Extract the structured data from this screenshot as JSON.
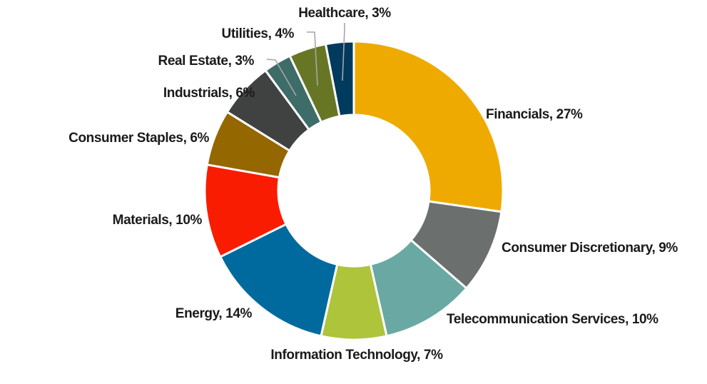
{
  "chart_data": {
    "type": "pie",
    "style": "donut",
    "title": "",
    "legend": "none",
    "slices": [
      {
        "label": "Financials, 27%",
        "name": "Financials",
        "value": 27,
        "color": "#EFAA00"
      },
      {
        "label": "Consumer Discretionary, 9%",
        "name": "Consumer Discretionary",
        "value": 9,
        "color": "#6B6F6E"
      },
      {
        "label": "Telecommunication Services, 10%",
        "name": "Telecommunication Services",
        "value": 10,
        "color": "#6AA9A3"
      },
      {
        "label": "Information Technology, 7%",
        "name": "Information Technology",
        "value": 7,
        "color": "#AEC43A"
      },
      {
        "label": "Energy, 14%",
        "name": "Energy",
        "value": 14,
        "color": "#006A9E"
      },
      {
        "label": "Materials, 10%",
        "name": "Materials",
        "value": 10,
        "color": "#FA1C00"
      },
      {
        "label": "Consumer Staples, 6%",
        "name": "Consumer Staples",
        "value": 6,
        "color": "#946700"
      },
      {
        "label": "Industrials, 6%",
        "name": "Industrials",
        "value": 6,
        "color": "#404241"
      },
      {
        "label": "Real Estate, 3%",
        "name": "Real Estate",
        "value": 3,
        "color": "#3D6C69"
      },
      {
        "label": "Utilities, 4%",
        "name": "Utilities",
        "value": 4,
        "color": "#677624"
      },
      {
        "label": "Healthcare, 3%",
        "name": "Healthcare",
        "value": 3,
        "color": "#003A5C"
      }
    ]
  }
}
